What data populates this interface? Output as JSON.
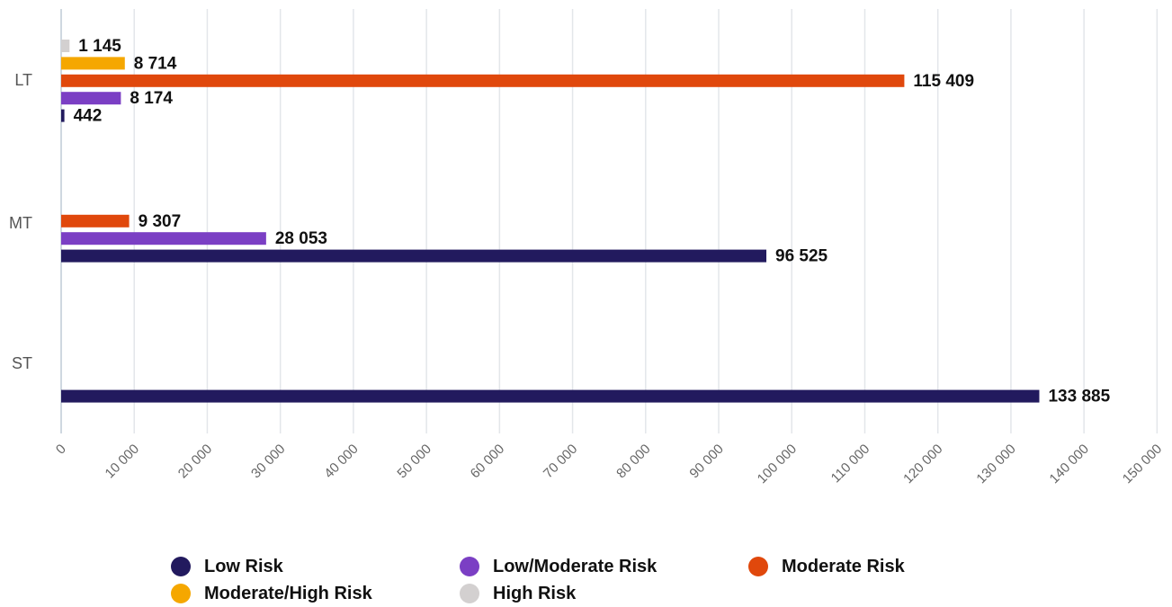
{
  "chart_data": {
    "type": "bar",
    "orientation": "horizontal",
    "categories": [
      "LT",
      "MT",
      "ST"
    ],
    "series": [
      {
        "name": "Low Risk",
        "color": "#221a5e",
        "values": [
          442,
          96525,
          133885
        ],
        "labels": [
          "442",
          "96 525",
          "133 885"
        ]
      },
      {
        "name": "Low/Moderate Risk",
        "color": "#7b3fc4",
        "values": [
          8174,
          28053,
          null
        ],
        "labels": [
          "8 174",
          "28 053",
          ""
        ]
      },
      {
        "name": "Moderate Risk",
        "color": "#e0480c",
        "values": [
          115409,
          9307,
          null
        ],
        "labels": [
          "115 409",
          "9 307",
          ""
        ]
      },
      {
        "name": "Moderate/High Risk",
        "color": "#f5a700",
        "values": [
          8714,
          null,
          null
        ],
        "labels": [
          "8 714",
          "",
          ""
        ]
      },
      {
        "name": "High Risk",
        "color": "#d3d0d0",
        "values": [
          1145,
          null,
          null
        ],
        "labels": [
          "1 145",
          "",
          ""
        ]
      }
    ],
    "x_ticks": [
      0,
      10000,
      20000,
      30000,
      40000,
      50000,
      60000,
      70000,
      80000,
      90000,
      100000,
      110000,
      120000,
      130000,
      140000,
      150000
    ],
    "x_tick_labels": [
      "0",
      "10 000",
      "20 000",
      "30 000",
      "40 000",
      "50 000",
      "60 000",
      "70 000",
      "80 000",
      "90 000",
      "100 000",
      "110 000",
      "120 000",
      "130 000",
      "140 000",
      "150 000"
    ],
    "xlim": [
      0,
      150000
    ],
    "title": "",
    "xlabel": "",
    "ylabel": "",
    "grid": true,
    "legend_position": "bottom"
  },
  "legend": {
    "items": [
      {
        "label": "Low Risk",
        "color": "#221a5e"
      },
      {
        "label": "Low/Moderate Risk",
        "color": "#7b3fc4"
      },
      {
        "label": "Moderate Risk",
        "color": "#e0480c"
      },
      {
        "label": "Moderate/High Risk",
        "color": "#f5a700"
      },
      {
        "label": "High Risk",
        "color": "#d3d0d0"
      }
    ]
  }
}
